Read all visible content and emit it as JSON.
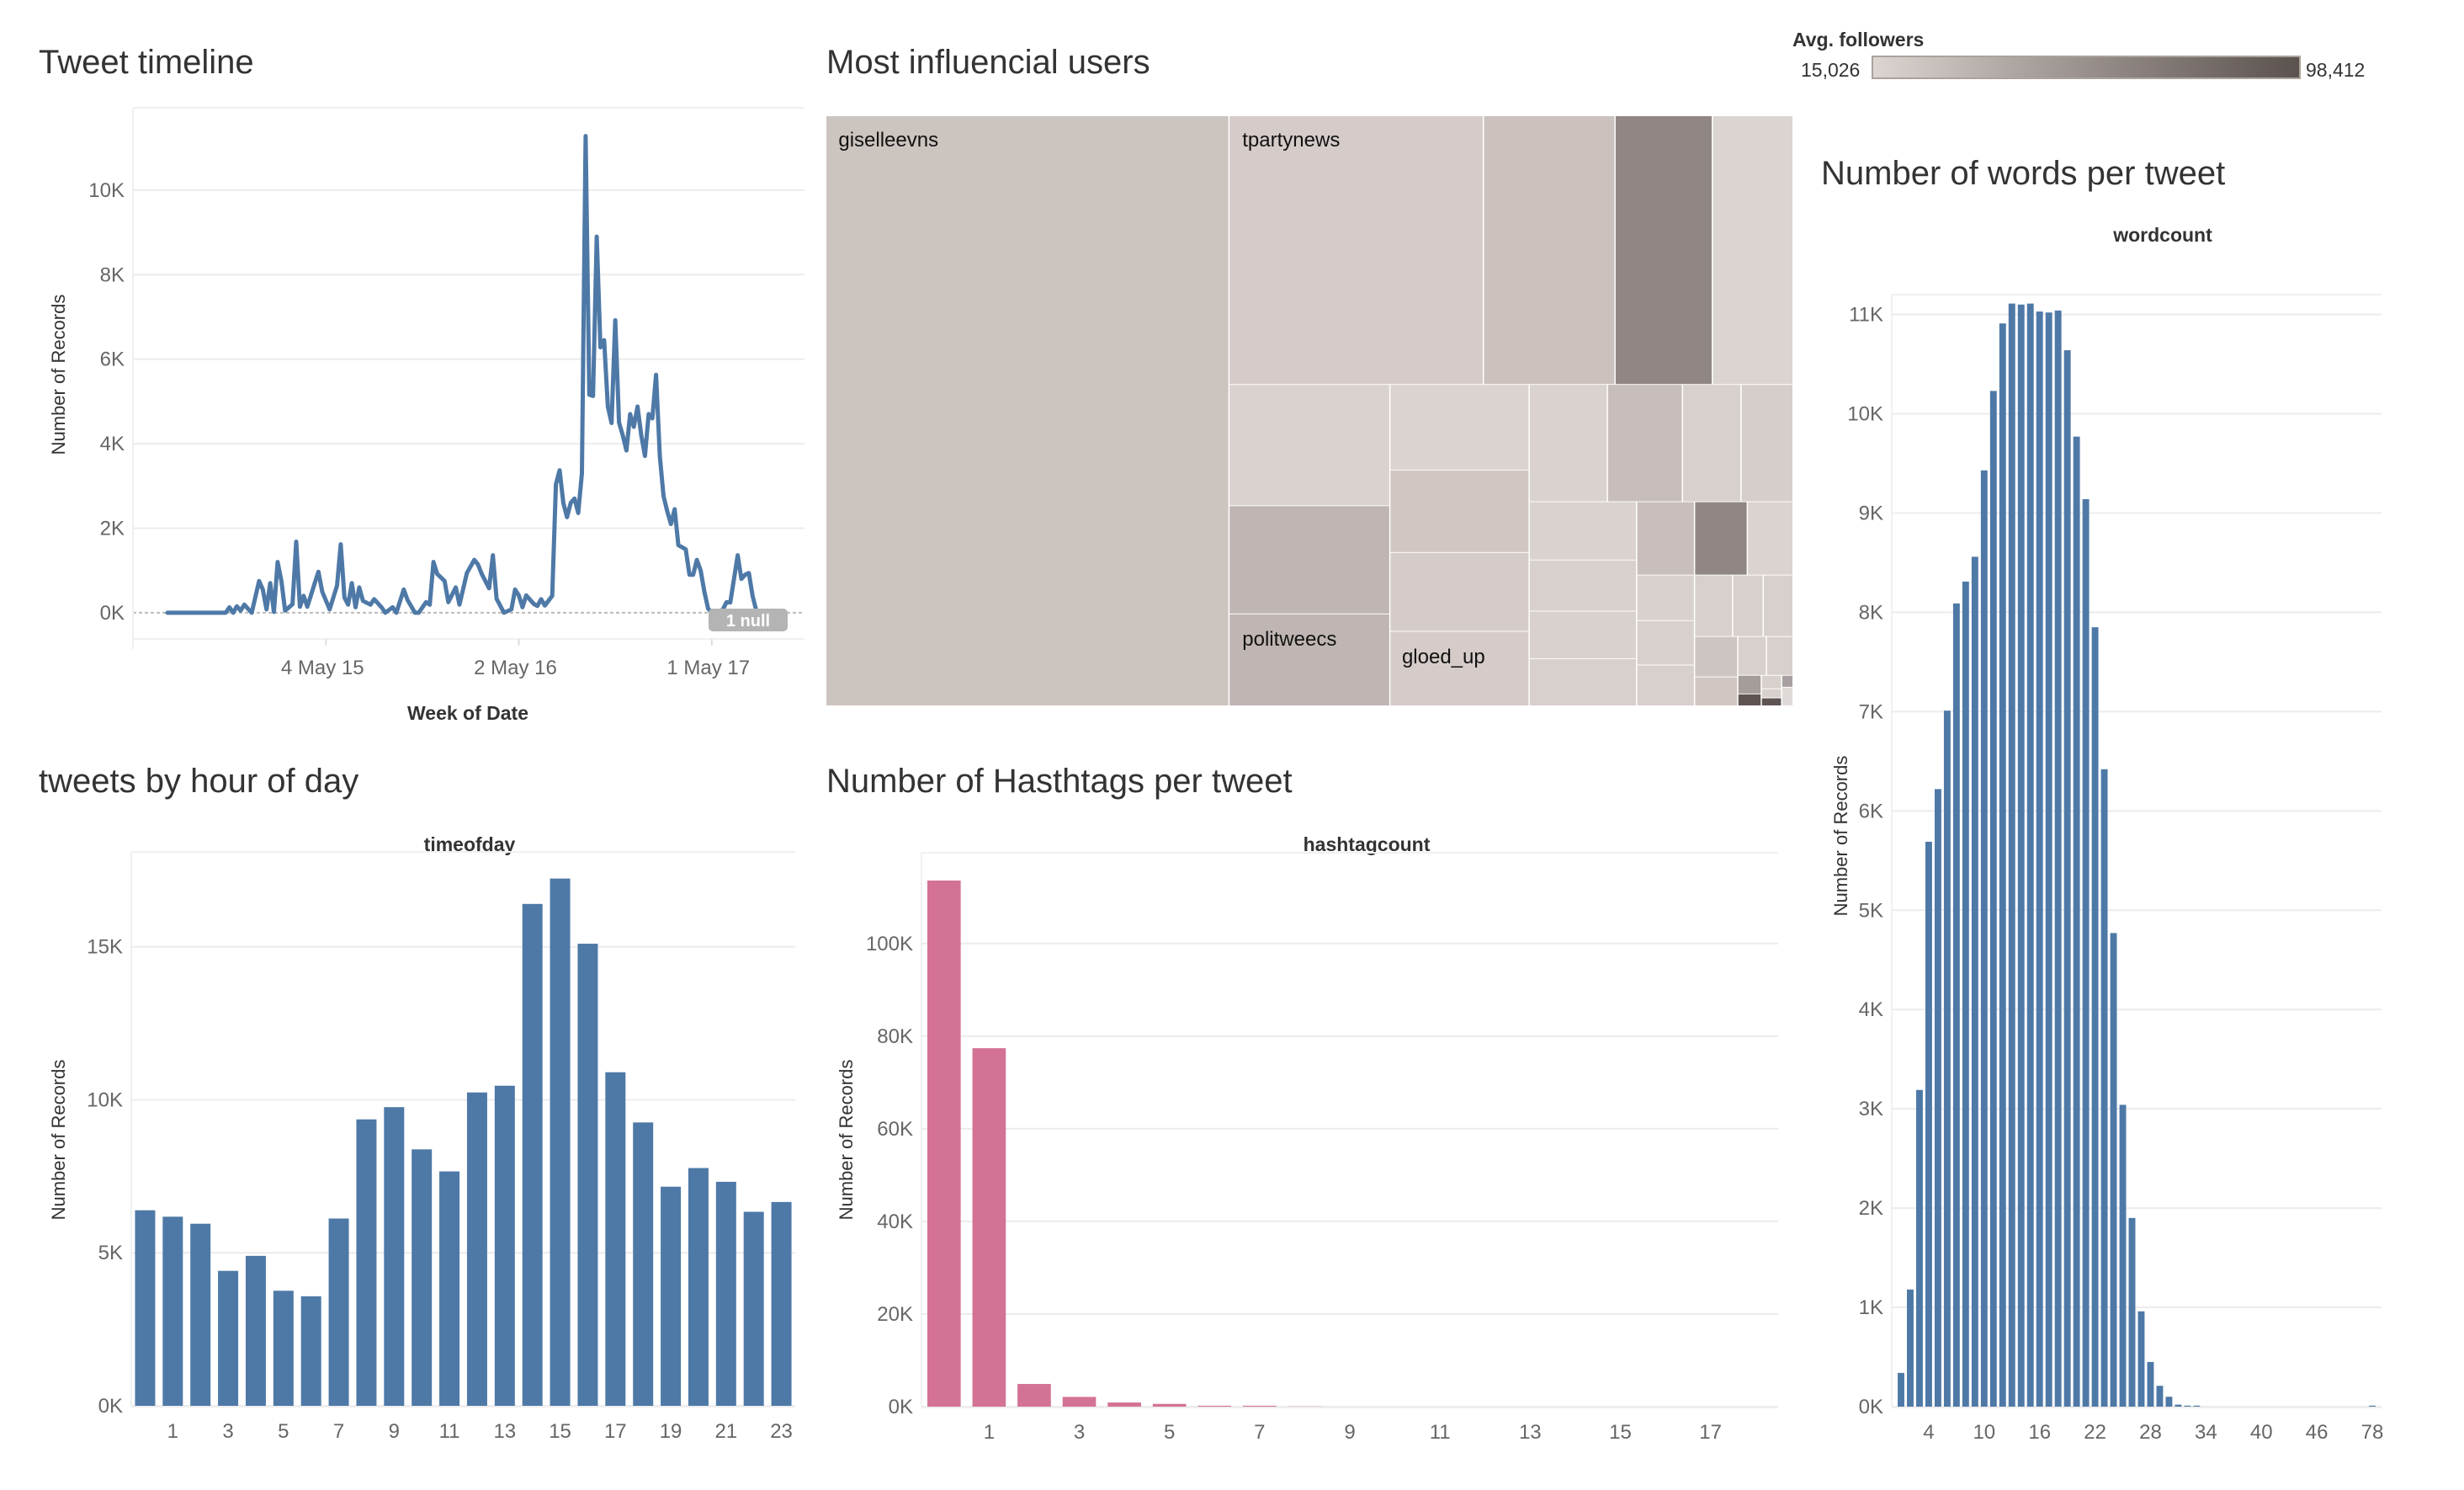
{
  "chart_data": [
    {
      "type": "line",
      "title": "Tweet timeline",
      "xlabel": "Week of Date",
      "ylabel": "Number of Records",
      "color": "#4e79a7",
      "xlim": [
        "2014-05-05",
        "2017-10-23"
      ],
      "ylim": [
        -620,
        11950
      ],
      "x_ticks": [
        [
          "2015-05-04",
          "4 May 15"
        ],
        [
          "2016-05-02",
          "2 May 16"
        ],
        [
          "2017-05-01",
          "1 May 17"
        ]
      ],
      "y_ticks": [
        [
          0,
          "0K"
        ],
        [
          2000,
          "2K"
        ],
        [
          4000,
          "4K"
        ],
        [
          6000,
          "6K"
        ],
        [
          8000,
          "8K"
        ],
        [
          10000,
          "10K"
        ]
      ],
      "grid": true,
      "null_badge": "1 null",
      "points": [
        [
          "2014-07-07",
          0
        ],
        [
          "2014-10-27",
          0
        ],
        [
          "2014-11-03",
          130
        ],
        [
          "2014-11-10",
          0
        ],
        [
          "2014-11-17",
          150
        ],
        [
          "2014-11-24",
          50
        ],
        [
          "2014-12-01",
          190
        ],
        [
          "2014-12-15",
          0
        ],
        [
          "2014-12-29",
          750
        ],
        [
          "2015-01-05",
          550
        ],
        [
          "2015-01-12",
          80
        ],
        [
          "2015-01-19",
          700
        ],
        [
          "2015-01-26",
          20
        ],
        [
          "2015-02-02",
          1200
        ],
        [
          "2015-02-09",
          750
        ],
        [
          "2015-02-16",
          50
        ],
        [
          "2015-03-02",
          200
        ],
        [
          "2015-03-09",
          1680
        ],
        [
          "2015-03-16",
          140
        ],
        [
          "2015-03-23",
          400
        ],
        [
          "2015-03-30",
          140
        ],
        [
          "2015-04-13",
          700
        ],
        [
          "2015-04-20",
          970
        ],
        [
          "2015-04-27",
          500
        ],
        [
          "2015-05-11",
          80
        ],
        [
          "2015-05-25",
          640
        ],
        [
          "2015-06-01",
          1620
        ],
        [
          "2015-06-08",
          360
        ],
        [
          "2015-06-15",
          190
        ],
        [
          "2015-06-22",
          700
        ],
        [
          "2015-06-29",
          130
        ],
        [
          "2015-07-06",
          600
        ],
        [
          "2015-07-13",
          280
        ],
        [
          "2015-07-27",
          190
        ],
        [
          "2015-08-03",
          320
        ],
        [
          "2015-08-17",
          130
        ],
        [
          "2015-08-24",
          0
        ],
        [
          "2015-09-07",
          130
        ],
        [
          "2015-09-14",
          0
        ],
        [
          "2015-09-28",
          550
        ],
        [
          "2015-10-05",
          300
        ],
        [
          "2015-10-19",
          0
        ],
        [
          "2015-10-26",
          0
        ],
        [
          "2015-11-09",
          250
        ],
        [
          "2015-11-16",
          190
        ],
        [
          "2015-11-23",
          1200
        ],
        [
          "2015-11-30",
          920
        ],
        [
          "2015-12-14",
          750
        ],
        [
          "2015-12-21",
          250
        ],
        [
          "2016-01-04",
          600
        ],
        [
          "2016-01-11",
          190
        ],
        [
          "2016-01-25",
          940
        ],
        [
          "2016-02-08",
          1250
        ],
        [
          "2016-02-15",
          1140
        ],
        [
          "2016-02-22",
          920
        ],
        [
          "2016-03-07",
          580
        ],
        [
          "2016-03-14",
          1360
        ],
        [
          "2016-03-21",
          330
        ],
        [
          "2016-04-04",
          0
        ],
        [
          "2016-04-18",
          80
        ],
        [
          "2016-04-25",
          550
        ],
        [
          "2016-05-02",
          410
        ],
        [
          "2016-05-09",
          130
        ],
        [
          "2016-05-16",
          410
        ],
        [
          "2016-05-30",
          210
        ],
        [
          "2016-06-06",
          160
        ],
        [
          "2016-06-13",
          320
        ],
        [
          "2016-06-20",
          170
        ],
        [
          "2016-07-04",
          400
        ],
        [
          "2016-07-11",
          3040
        ],
        [
          "2016-07-18",
          3370
        ],
        [
          "2016-07-25",
          2600
        ],
        [
          "2016-08-01",
          2260
        ],
        [
          "2016-08-08",
          2600
        ],
        [
          "2016-08-15",
          2700
        ],
        [
          "2016-08-22",
          2360
        ],
        [
          "2016-08-29",
          3300
        ],
        [
          "2016-09-05",
          11280
        ],
        [
          "2016-09-12",
          5160
        ],
        [
          "2016-09-19",
          5130
        ],
        [
          "2016-09-26",
          8900
        ],
        [
          "2016-10-03",
          6280
        ],
        [
          "2016-10-10",
          6450
        ],
        [
          "2016-10-17",
          4880
        ],
        [
          "2016-10-24",
          4490
        ],
        [
          "2016-10-31",
          6920
        ],
        [
          "2016-11-07",
          4500
        ],
        [
          "2016-11-14",
          4200
        ],
        [
          "2016-11-21",
          3840
        ],
        [
          "2016-11-28",
          4700
        ],
        [
          "2016-12-05",
          4400
        ],
        [
          "2016-12-12",
          4880
        ],
        [
          "2016-12-19",
          4200
        ],
        [
          "2016-12-26",
          3710
        ],
        [
          "2017-01-02",
          4700
        ],
        [
          "2017-01-09",
          4600
        ],
        [
          "2017-01-16",
          5630
        ],
        [
          "2017-01-23",
          3700
        ],
        [
          "2017-01-30",
          2760
        ],
        [
          "2017-02-06",
          2400
        ],
        [
          "2017-02-13",
          2100
        ],
        [
          "2017-02-20",
          2450
        ],
        [
          "2017-02-27",
          1600
        ],
        [
          "2017-03-06",
          1550
        ],
        [
          "2017-03-13",
          1500
        ],
        [
          "2017-03-20",
          900
        ],
        [
          "2017-03-27",
          900
        ],
        [
          "2017-04-03",
          1250
        ],
        [
          "2017-04-10",
          1000
        ],
        [
          "2017-04-17",
          500
        ],
        [
          "2017-04-24",
          100
        ],
        [
          "2017-05-01",
          0
        ],
        [
          "2017-05-08",
          0
        ],
        [
          "2017-05-15",
          20
        ],
        [
          "2017-05-22",
          80
        ],
        [
          "2017-05-29",
          250
        ],
        [
          "2017-06-05",
          240
        ],
        [
          "2017-06-12",
          800
        ],
        [
          "2017-06-19",
          1360
        ],
        [
          "2017-06-26",
          800
        ],
        [
          "2017-07-03",
          900
        ],
        [
          "2017-07-10",
          940
        ],
        [
          "2017-07-17",
          400
        ],
        [
          "2017-07-24",
          50
        ],
        [
          "2017-07-31",
          10
        ],
        [
          "2017-08-07",
          0
        ],
        [
          "2017-08-21",
          0
        ],
        [
          "2017-09-11",
          0
        ]
      ]
    },
    {
      "type": "treemap",
      "title": "Most influencial users",
      "labels": [
        "giselleevns",
        "tpartynews",
        "politweecs",
        "gloed_up"
      ],
      "legend": {
        "title": "Avg. followers",
        "min": "15,026",
        "max": "98,412",
        "colors": [
          "#dcd5d2",
          "#5b524f"
        ]
      }
    },
    {
      "type": "bar",
      "title": "tweets by hour of day",
      "header": "timeofday",
      "ylabel": "Number of Records",
      "color": "#4e79a7",
      "ylim": [
        0,
        18100
      ],
      "categories": [
        0,
        1,
        2,
        3,
        4,
        5,
        6,
        7,
        8,
        9,
        10,
        11,
        12,
        13,
        14,
        15,
        16,
        17,
        18,
        19,
        20,
        21,
        22,
        23
      ],
      "values": [
        6390,
        6180,
        5950,
        4410,
        4900,
        3760,
        3580,
        6120,
        9360,
        9760,
        8380,
        7660,
        10240,
        10460,
        16400,
        17230,
        15100,
        10900,
        9260,
        7160,
        7770,
        7320,
        6340,
        6660
      ],
      "x_tick_labels": [
        [
          1,
          "1"
        ],
        [
          3,
          "3"
        ],
        [
          5,
          "5"
        ],
        [
          7,
          "7"
        ],
        [
          9,
          "9"
        ],
        [
          11,
          "11"
        ],
        [
          13,
          "13"
        ],
        [
          15,
          "15"
        ],
        [
          17,
          "17"
        ],
        [
          19,
          "19"
        ],
        [
          21,
          "21"
        ],
        [
          23,
          "23"
        ]
      ],
      "y_ticks": [
        [
          0,
          "0K"
        ],
        [
          5000,
          "5K"
        ],
        [
          10000,
          "10K"
        ],
        [
          15000,
          "15K"
        ]
      ]
    },
    {
      "type": "bar",
      "title": "Number of Hasthtags per tweet",
      "header": "hashtagcount",
      "ylabel": "Number of Records",
      "color": "#d37295",
      "ylim": [
        0,
        119600
      ],
      "categories": [
        0,
        1,
        2,
        3,
        4,
        5,
        6,
        7,
        8,
        9,
        10,
        11,
        12,
        13,
        14,
        15,
        16,
        17,
        18
      ],
      "values": [
        113600,
        77400,
        4900,
        2100,
        900,
        600,
        200,
        200,
        50,
        0,
        0,
        0,
        0,
        0,
        0,
        0,
        0,
        0,
        0
      ],
      "x_tick_labels": [
        [
          1,
          "1"
        ],
        [
          3,
          "3"
        ],
        [
          5,
          "5"
        ],
        [
          7,
          "7"
        ],
        [
          9,
          "9"
        ],
        [
          11,
          "11"
        ],
        [
          13,
          "13"
        ],
        [
          15,
          "15"
        ],
        [
          17,
          "17"
        ]
      ],
      "y_ticks": [
        [
          0,
          "0K"
        ],
        [
          20000,
          "20K"
        ],
        [
          40000,
          "40K"
        ],
        [
          60000,
          "60K"
        ],
        [
          80000,
          "80K"
        ],
        [
          100000,
          "100K"
        ]
      ]
    },
    {
      "type": "bar",
      "title": "Number of words per tweet",
      "header": "wordcount",
      "ylabel": "Number of Records",
      "color": "#4e79a7",
      "ylim": [
        0,
        11200
      ],
      "categories": [
        1,
        2,
        3,
        4,
        5,
        6,
        7,
        8,
        9,
        10,
        11,
        12,
        13,
        14,
        15,
        16,
        17,
        18,
        19,
        20,
        21,
        22,
        23,
        24,
        25,
        26,
        27,
        28,
        29,
        30,
        31,
        32,
        33,
        34,
        35,
        36,
        37,
        38,
        39,
        40,
        41,
        42,
        43,
        44,
        45,
        46,
        47,
        48,
        49,
        50,
        51,
        78
      ],
      "values": [
        340,
        1180,
        3190,
        5690,
        6220,
        7010,
        8090,
        8310,
        8560,
        9430,
        10230,
        10910,
        11110,
        11100,
        11110,
        11030,
        11020,
        11040,
        10640,
        9770,
        9140,
        7850,
        6420,
        4770,
        3040,
        1900,
        960,
        450,
        210,
        100,
        20,
        10,
        10,
        0,
        0,
        0,
        0,
        0,
        0,
        0,
        0,
        0,
        0,
        0,
        0,
        0,
        0,
        0,
        0,
        0,
        0,
        10
      ],
      "x_tick_labels": [
        [
          4,
          "4"
        ],
        [
          10,
          "10"
        ],
        [
          16,
          "16"
        ],
        [
          22,
          "22"
        ],
        [
          28,
          "28"
        ],
        [
          34,
          "34"
        ],
        [
          40,
          "40"
        ],
        [
          46,
          "46"
        ],
        [
          78,
          "78"
        ]
      ],
      "y_ticks": [
        [
          0,
          "0K"
        ],
        [
          1000,
          "1K"
        ],
        [
          2000,
          "2K"
        ],
        [
          3000,
          "3K"
        ],
        [
          4000,
          "4K"
        ],
        [
          5000,
          "5K"
        ],
        [
          6000,
          "6K"
        ],
        [
          7000,
          "7K"
        ],
        [
          8000,
          "8K"
        ],
        [
          9000,
          "9K"
        ],
        [
          10000,
          "10K"
        ],
        [
          11000,
          "11K"
        ]
      ]
    }
  ]
}
